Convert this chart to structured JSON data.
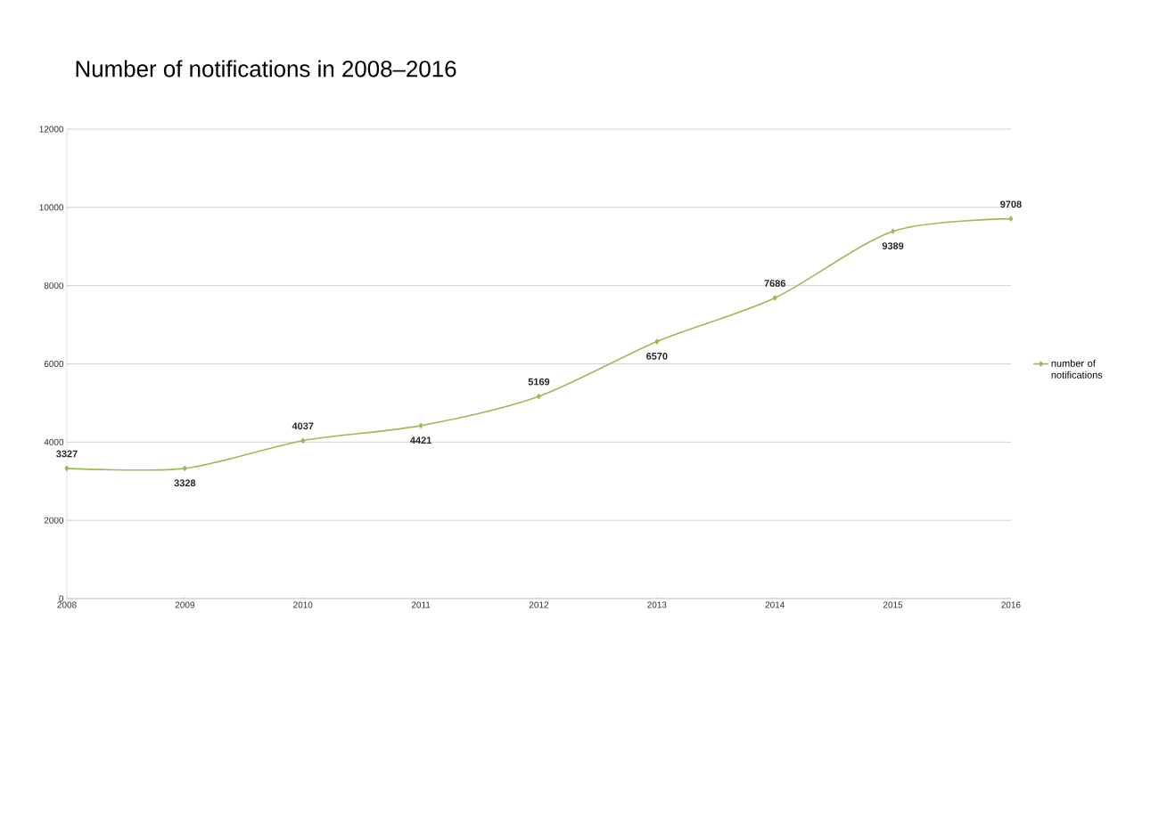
{
  "chart_data": {
    "type": "line",
    "title": "Number of notifications in 2008–2016",
    "x": [
      2008,
      2009,
      2010,
      2011,
      2012,
      2013,
      2014,
      2015,
      2016
    ],
    "series": [
      {
        "name": "number of notifications",
        "color": "#9bbb59",
        "values": [
          3327,
          3328,
          4037,
          4421,
          5169,
          6570,
          7686,
          9389,
          9708
        ]
      }
    ],
    "xlim": [
      2008,
      2016
    ],
    "xticks": [
      2008,
      2009,
      2010,
      2011,
      2012,
      2013,
      2014,
      2015,
      2016
    ],
    "ylim": [
      0,
      12000
    ],
    "yticks": [
      0,
      2000,
      4000,
      6000,
      8000,
      10000,
      12000
    ],
    "grid": "y",
    "legend": "right",
    "marker": "diamond",
    "data_labels": true
  }
}
